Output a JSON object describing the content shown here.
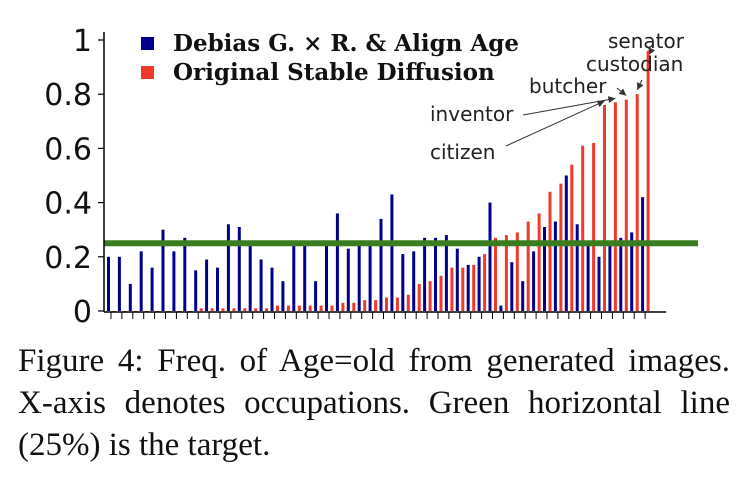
{
  "chart_data": {
    "type": "bar",
    "ylim": [
      0,
      1
    ],
    "yticks": [
      "0",
      "0.2",
      "0.4",
      "0.6",
      "0.8",
      "1"
    ],
    "ytick_values": [
      0,
      0.2,
      0.4,
      0.6,
      0.8,
      1.0
    ],
    "target": 0.25,
    "colors": {
      "debias": "#00008b",
      "original": "#ee3a2a",
      "target": "#3a7d1e"
    },
    "legend": {
      "placement": "top-left",
      "entries": [
        "Debias G. × R. & Align Age",
        "Original Stable Diffusion"
      ]
    },
    "series": [
      {
        "name": "Debias G. × R. & Align Age",
        "values": [
          0.2,
          0.2,
          0.1,
          0.22,
          0.16,
          0.3,
          0.22,
          0.27,
          0.15,
          0.19,
          0.16,
          0.32,
          0.31,
          0.24,
          0.19,
          0.16,
          0.11,
          0.26,
          0.26,
          0.11,
          0.26,
          0.36,
          0.23,
          0.26,
          0.26,
          0.34,
          0.43,
          0.21,
          0.22,
          0.27,
          0.27,
          0.28,
          0.23,
          0.17,
          0.2,
          0.4,
          0.02,
          0.18,
          0.11,
          0.22,
          0.31,
          0.33,
          0.5,
          0.32,
          0.26,
          0.2,
          0.24,
          0.27,
          0.29,
          0.42
        ]
      },
      {
        "name": "Original Stable Diffusion",
        "values": [
          0.0,
          0.0,
          0.0,
          0.0,
          0.0,
          0.0,
          0.0,
          0.0,
          0.01,
          0.01,
          0.01,
          0.01,
          0.01,
          0.01,
          0.01,
          0.02,
          0.02,
          0.02,
          0.02,
          0.02,
          0.02,
          0.03,
          0.03,
          0.04,
          0.04,
          0.05,
          0.05,
          0.06,
          0.1,
          0.11,
          0.13,
          0.16,
          0.16,
          0.17,
          0.21,
          0.27,
          0.28,
          0.29,
          0.33,
          0.36,
          0.44,
          0.47,
          0.54,
          0.61,
          0.62,
          0.76,
          0.77,
          0.78,
          0.8,
          0.96
        ]
      }
    ],
    "annotations": [
      {
        "text": "senator",
        "bar_index": 49
      },
      {
        "text": "custodian",
        "bar_index": 48
      },
      {
        "text": "butcher",
        "bar_index": 47
      },
      {
        "text": "inventor",
        "bar_index": 46
      },
      {
        "text": "citizen",
        "bar_index": 45
      }
    ]
  },
  "caption": "Figure 4: Freq. of Age=old from generated images. X-axis denotes occupations. Green horizontal line (25%) is the target."
}
